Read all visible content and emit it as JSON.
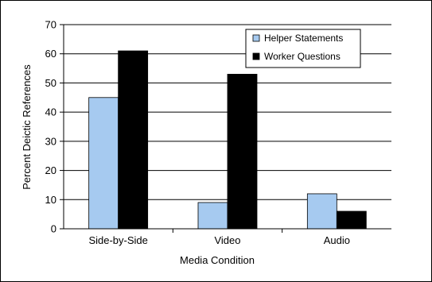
{
  "chart_data": {
    "type": "bar",
    "title": "",
    "xlabel": "Media Condition",
    "ylabel": "Percent Deictic References",
    "ylim": [
      0,
      70
    ],
    "yticks": [
      0,
      10,
      20,
      30,
      40,
      50,
      60,
      70
    ],
    "grid": true,
    "legend_position": "top-right",
    "categories": [
      "Side-by-Side",
      "Video",
      "Audio"
    ],
    "series": [
      {
        "name": "Helper Statements",
        "color": "#a6caf0",
        "values": [
          45,
          9,
          12
        ]
      },
      {
        "name": "Worker Questions",
        "color": "#000000",
        "values": [
          61,
          53,
          6
        ]
      }
    ]
  }
}
